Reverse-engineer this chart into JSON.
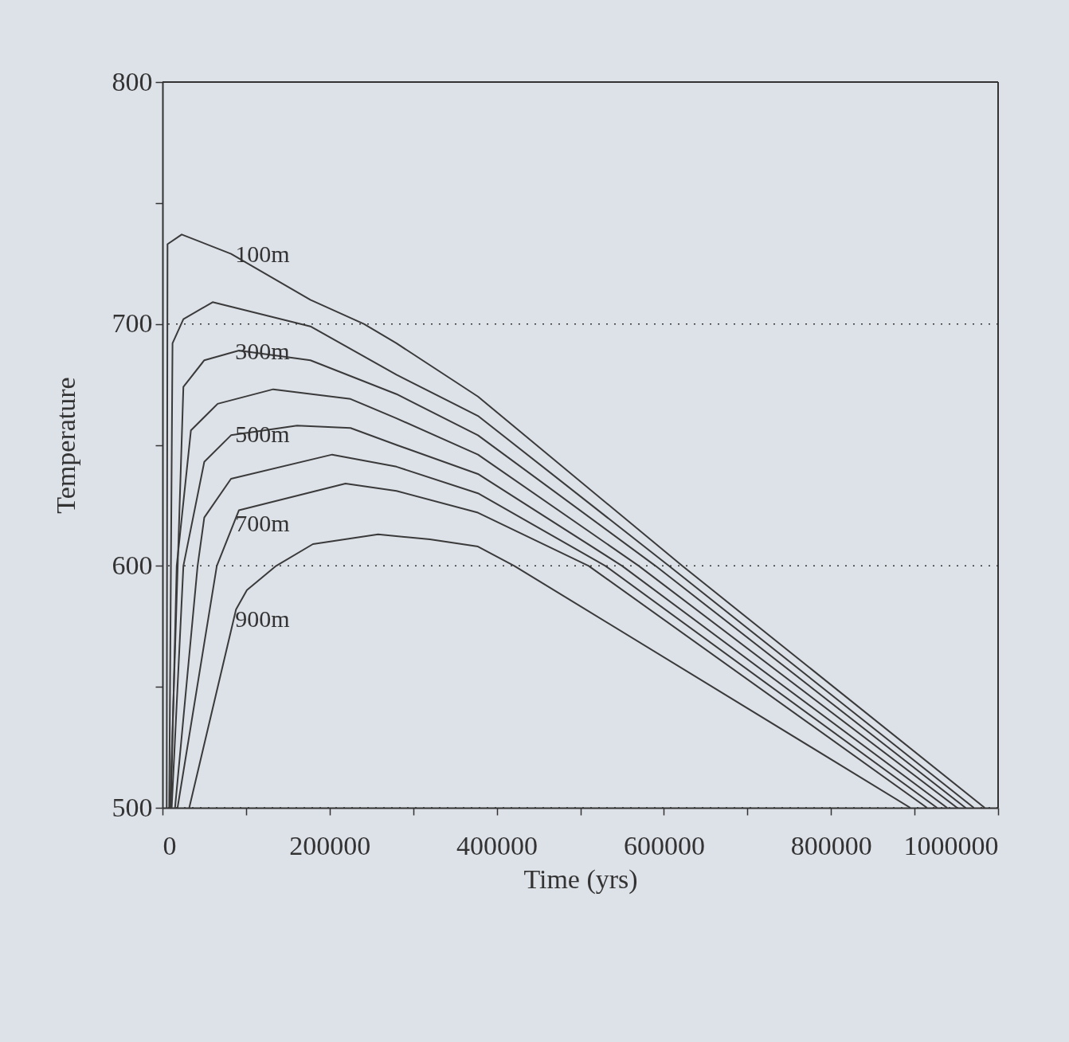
{
  "chart_data": {
    "type": "line",
    "xlabel": "Time (yrs)",
    "ylabel": "Temperature",
    "xlim": [
      0,
      1000000
    ],
    "ylim": [
      500,
      800
    ],
    "xticks": [
      0,
      {
        "value": 100000,
        "label": null
      },
      200000,
      {
        "value": 300000,
        "label": null
      },
      400000,
      {
        "value": 500000,
        "label": null
      },
      600000,
      {
        "value": 700000,
        "label": null
      },
      800000,
      {
        "value": 900000,
        "label": null
      },
      1000000
    ],
    "yticks": [
      500,
      {
        "value": 550,
        "label": null
      },
      600,
      {
        "value": 650,
        "label": null
      },
      700,
      {
        "value": 750,
        "label": null
      },
      800
    ],
    "grid": "y",
    "legend": false,
    "marker": "none",
    "line_style": "solid",
    "series": [
      {
        "name": "100m",
        "color": "#3a3a3a",
        "x": [
          5000,
          6000,
          23000,
          82000,
          177000,
          241000,
          280000,
          377500,
          622000,
          984000
        ],
        "values": [
          500,
          733,
          737,
          729,
          710,
          700,
          692,
          670,
          600,
          500
        ]
      },
      {
        "color": "#3a3a3a",
        "x": [
          8000,
          12000,
          25000,
          60000,
          177000,
          280000,
          377500,
          606000,
          971000
        ],
        "values": [
          500,
          692,
          702,
          709,
          699,
          679,
          662,
          600,
          500
        ]
      },
      {
        "name": "300m",
        "color": "#3a3a3a",
        "x": [
          9000,
          25000,
          50000,
          91500,
          177000,
          280000,
          377500,
          590000,
          961000
        ],
        "values": [
          500,
          674,
          685,
          689,
          685,
          671,
          654,
          600,
          500
        ]
      },
      {
        "color": "#3a3a3a",
        "x": [
          10000,
          17000,
          34000,
          66000,
          132500,
          225000,
          280000,
          377500,
          570000,
          951000
        ],
        "values": [
          500,
          600,
          656,
          667,
          673,
          669,
          661,
          646,
          600,
          500
        ]
      },
      {
        "name": "500m",
        "color": "#3a3a3a",
        "x": [
          11000,
          25000,
          50000,
          82000,
          161000,
          225000,
          280000,
          377500,
          550000,
          939000
        ],
        "values": [
          500,
          600,
          643,
          654,
          658,
          657,
          650,
          638,
          600,
          500
        ]
      },
      {
        "color": "#3a3a3a",
        "x": [
          15000,
          42000,
          50000,
          82000,
          203000,
          280000,
          377500,
          530000,
          927000
        ],
        "values": [
          500,
          600,
          620,
          636,
          646,
          641,
          630,
          600,
          500
        ]
      },
      {
        "name": "700m",
        "color": "#3a3a3a",
        "x": [
          18000,
          65000,
          91500,
          219000,
          280000,
          377500,
          510000,
          915000
        ],
        "values": [
          500,
          600,
          623,
          634,
          631,
          622,
          600,
          500
        ]
      },
      {
        "name": "900m",
        "color": "#3a3a3a",
        "x": [
          32000,
          88000,
          101000,
          136000,
          180000,
          258000,
          320000,
          377500,
          421000,
          895000
        ],
        "values": [
          500,
          582,
          590,
          600,
          609,
          613,
          611,
          608,
          600,
          500
        ]
      }
    ]
  }
}
